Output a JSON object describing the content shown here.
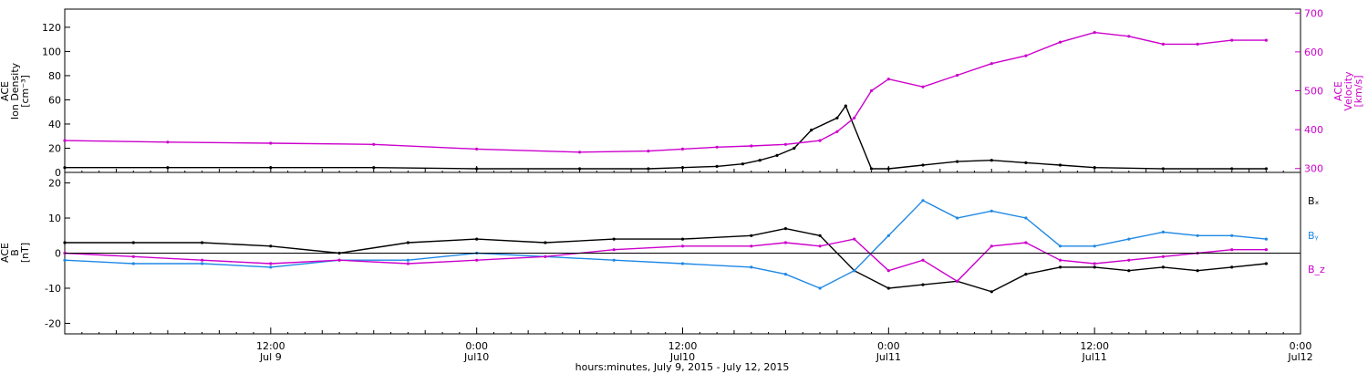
{
  "colors": {
    "black": "#000000",
    "magenta": "#cc00cc",
    "blue": "#1e88e5"
  },
  "x_axis": {
    "title": "hours:minutes, July  9, 2015 - July 12, 2015",
    "ticks": [
      {
        "t": 12,
        "time": "12:00",
        "day": "Jul 9"
      },
      {
        "t": 24,
        "time": "0:00",
        "day": "Jul10"
      },
      {
        "t": 36,
        "time": "12:00",
        "day": "Jul10"
      },
      {
        "t": 48,
        "time": "0:00",
        "day": "Jul11"
      },
      {
        "t": 60,
        "time": "12:00",
        "day": "Jul11"
      },
      {
        "t": 72,
        "time": "0:00",
        "day": "Jul12"
      }
    ]
  },
  "chart_data": [
    {
      "type": "scatter",
      "panel": "top",
      "xlim_hours_since_jul9_0000": [
        0,
        72
      ],
      "left_axis": {
        "label_lines": [
          "ACE",
          "Ion Density",
          "[cm⁻³]"
        ],
        "ylim": [
          0,
          135
        ],
        "ticks": [
          0,
          20,
          40,
          60,
          80,
          100,
          120
        ]
      },
      "right_axis": {
        "label_lines": [
          "ACE",
          "Velocity",
          "[km/s]"
        ],
        "ylim": [
          290,
          710
        ],
        "ticks": [
          300,
          400,
          500,
          600,
          700
        ]
      },
      "series": [
        {
          "name": "Ion Density",
          "axis": "left",
          "color": "#000000",
          "x": [
            0,
            6,
            12,
            18,
            24,
            30,
            34,
            36,
            38,
            39.5,
            40.5,
            41.5,
            42.5,
            43.5,
            45,
            45.5,
            47,
            48,
            50,
            52,
            54,
            56,
            58,
            60,
            64,
            68,
            70
          ],
          "y": [
            4,
            4,
            4,
            4,
            3,
            3,
            3,
            4,
            5,
            7,
            10,
            14,
            20,
            35,
            45,
            55,
            3,
            3,
            6,
            9,
            10,
            8,
            6,
            4,
            3,
            3,
            3
          ]
        },
        {
          "name": "Velocity",
          "axis": "right",
          "color": "#cc00cc",
          "x": [
            0,
            6,
            12,
            18,
            24,
            30,
            34,
            36,
            38,
            40,
            42,
            44,
            45,
            46,
            47,
            48,
            50,
            52,
            54,
            56,
            58,
            60,
            62,
            64,
            66,
            68,
            70
          ],
          "y": [
            372,
            368,
            365,
            362,
            350,
            342,
            345,
            350,
            355,
            358,
            362,
            372,
            395,
            430,
            500,
            530,
            510,
            540,
            570,
            590,
            625,
            650,
            640,
            620,
            620,
            630,
            630
          ]
        }
      ]
    },
    {
      "type": "scatter",
      "panel": "bottom",
      "xlim_hours_since_jul9_0000": [
        0,
        72
      ],
      "y_axis": {
        "label_lines": [
          "ACE",
          "B",
          "[nT]"
        ],
        "ylim": [
          -23,
          23
        ],
        "ticks": [
          -20,
          -10,
          0,
          10,
          20
        ]
      },
      "reference_line": 0,
      "legend": {
        "position": "right",
        "labels": [
          "Bₓ",
          "Bᵧ",
          "B_z"
        ]
      },
      "series": [
        {
          "name": "Bx",
          "color": "#000000",
          "x": [
            0,
            4,
            8,
            12,
            16,
            20,
            24,
            28,
            32,
            36,
            40,
            42,
            44,
            46,
            48,
            50,
            52,
            54,
            56,
            58,
            60,
            62,
            64,
            66,
            68,
            70
          ],
          "y": [
            3,
            3,
            3,
            2,
            0,
            3,
            4,
            3,
            4,
            4,
            5,
            7,
            5,
            -5,
            -10,
            -9,
            -8,
            -11,
            -6,
            -4,
            -4,
            -5,
            -4,
            -5,
            -4,
            -3
          ]
        },
        {
          "name": "By",
          "color": "#1e88e5",
          "x": [
            0,
            4,
            8,
            12,
            16,
            20,
            24,
            28,
            32,
            36,
            40,
            42,
            44,
            46,
            48,
            50,
            52,
            54,
            56,
            58,
            60,
            62,
            64,
            66,
            68,
            70
          ],
          "y": [
            -2,
            -3,
            -3,
            -4,
            -2,
            -2,
            0,
            -1,
            -2,
            -3,
            -4,
            -6,
            -10,
            -5,
            5,
            15,
            10,
            12,
            10,
            2,
            2,
            4,
            6,
            5,
            5,
            4
          ]
        },
        {
          "name": "Bz",
          "color": "#cc00cc",
          "x": [
            0,
            4,
            8,
            12,
            16,
            20,
            24,
            28,
            32,
            36,
            40,
            42,
            44,
            46,
            48,
            50,
            52,
            54,
            56,
            58,
            60,
            62,
            64,
            66,
            68,
            70
          ],
          "y": [
            0,
            -1,
            -2,
            -3,
            -2,
            -3,
            -2,
            -1,
            1,
            2,
            2,
            3,
            2,
            4,
            -5,
            -2,
            -8,
            2,
            3,
            -2,
            -3,
            -2,
            -1,
            0,
            1,
            1
          ]
        }
      ]
    }
  ]
}
